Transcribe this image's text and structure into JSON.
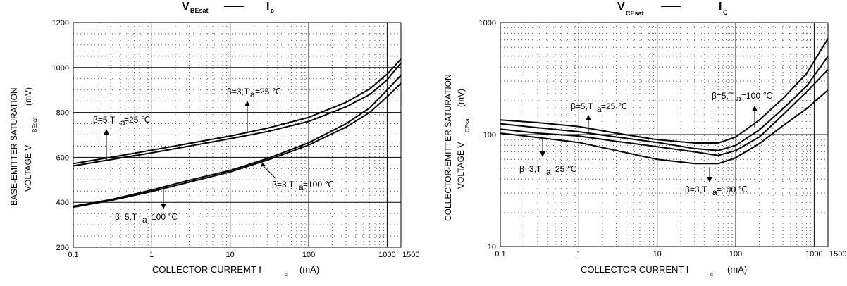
{
  "chart_data": [
    {
      "type": "line",
      "title": {
        "main": "V",
        "sub": "BEsat",
        "dash": "——",
        "rhs_main": "I",
        "rhs_sub": "c"
      },
      "xlabel": {
        "text": "COLLECTOR CURREMT  I",
        "sub": "c",
        "unit": "(mA)"
      },
      "ylabel": {
        "line1": "BASE-EMITTER SATURATION",
        "line2": "VOLTAGE    V",
        "sub": "BEsat",
        "unit": "(mV)"
      },
      "x_scale": "log",
      "xlim": [
        0.1,
        1500
      ],
      "ylim": [
        200,
        1200
      ],
      "x_ticks": [
        0.1,
        1,
        10,
        100,
        1000,
        1500
      ],
      "x_tick_labels": [
        "0.1",
        "1",
        "10",
        "100",
        "1000",
        "1500"
      ],
      "y_ticks": [
        200,
        400,
        600,
        800,
        1000,
        1200
      ],
      "y_tick_labels": [
        "200",
        "400",
        "600",
        "800",
        "1000",
        "1200"
      ],
      "major_hlines": [
        400,
        600,
        800,
        1000
      ],
      "grid": true,
      "series": [
        {
          "x": [
            0.1,
            0.3,
            1,
            3,
            10,
            30,
            100,
            300,
            600,
            1000,
            1500
          ],
          "y": [
            562,
            590,
            620,
            650,
            683,
            715,
            760,
            825,
            880,
            945,
            1020
          ]
        },
        {
          "x": [
            0.1,
            0.3,
            1,
            3,
            10,
            30,
            100,
            300,
            600,
            1000,
            1500
          ],
          "y": [
            572,
            600,
            632,
            662,
            695,
            730,
            778,
            845,
            905,
            970,
            1038
          ]
        },
        {
          "x": [
            0.1,
            0.3,
            1,
            3,
            10,
            30,
            100,
            300,
            600,
            1000,
            1500
          ],
          "y": [
            378,
            408,
            448,
            490,
            535,
            588,
            655,
            735,
            800,
            870,
            930
          ]
        },
        {
          "x": [
            0.1,
            0.3,
            1,
            3,
            10,
            30,
            100,
            300,
            600,
            1000,
            1500
          ],
          "y": [
            382,
            412,
            455,
            498,
            542,
            595,
            665,
            750,
            820,
            900,
            965
          ]
        }
      ],
      "annotations": [
        {
          "pre": "β=5,T",
          "sub": "a",
          "post": "=25 ℃"
        },
        {
          "pre": "β=3,T",
          "sub": "a",
          "post": "=25 ℃"
        },
        {
          "pre": "β=3,T",
          "sub": "a",
          "post": "=100  ℃"
        },
        {
          "pre": "β=5,T",
          "sub": "a",
          "post": "=100  ℃"
        }
      ]
    },
    {
      "type": "line",
      "title": {
        "main": "V",
        "sub": "CEsat",
        "dash": "——",
        "rhs_main": "I",
        "rhs_sub": "C"
      },
      "xlabel": {
        "text": "COLLECTOR CURRENT  I",
        "sub": "c",
        "unit": "(mA)"
      },
      "ylabel": {
        "line1": "COLLECTOR-EMITTER SATURATION",
        "line2": "VOLTAGE    V",
        "sub": "CEsat",
        "unit": "(mV)"
      },
      "x_scale": "log",
      "y_scale": "log",
      "xlim": [
        0.1,
        1500
      ],
      "ylim": [
        10,
        1000
      ],
      "x_ticks": [
        0.1,
        1,
        10,
        100,
        1000,
        1500
      ],
      "x_tick_labels": [
        "0.1",
        "1",
        "10",
        "100",
        "1000",
        "1500"
      ],
      "y_ticks": [
        10,
        100,
        1000
      ],
      "y_tick_labels": [
        "10",
        "100",
        "1000"
      ],
      "major_hlines": [
        100
      ],
      "grid": true,
      "series": [
        {
          "x": [
            0.1,
            0.3,
            1,
            3,
            10,
            30,
            60,
            100,
            200,
            400,
            800,
            1500
          ],
          "y": [
            135,
            128,
            118,
            103,
            90,
            84,
            84,
            95,
            135,
            210,
            350,
            720
          ]
        },
        {
          "x": [
            0.1,
            0.3,
            1,
            3,
            10,
            30,
            60,
            100,
            200,
            400,
            800,
            1500
          ],
          "y": [
            125,
            115,
            106,
            95,
            85,
            75,
            72,
            80,
            110,
            170,
            270,
            500
          ]
        },
        {
          "x": [
            0.1,
            0.3,
            1,
            3,
            10,
            30,
            60,
            100,
            200,
            400,
            800,
            1500
          ],
          "y": [
            112,
            103,
            97,
            87,
            78,
            70,
            65,
            72,
            95,
            150,
            240,
            380
          ]
        },
        {
          "x": [
            0.1,
            0.3,
            1,
            3,
            10,
            30,
            60,
            100,
            200,
            400,
            800,
            1500
          ],
          "y": [
            103,
            94,
            85,
            72,
            60,
            55,
            55,
            62,
            83,
            120,
            170,
            250
          ]
        }
      ],
      "annotations": [
        {
          "pre": "β=5,T",
          "sub": "a",
          "post": "=25 ℃"
        },
        {
          "pre": "β=5,T",
          "sub": "a",
          "post": "=100  ℃"
        },
        {
          "pre": "β=3,T",
          "sub": "a",
          "post": "=25 ℃"
        },
        {
          "pre": "β=3,T",
          "sub": "a",
          "post": "=100  ℃"
        }
      ]
    }
  ]
}
